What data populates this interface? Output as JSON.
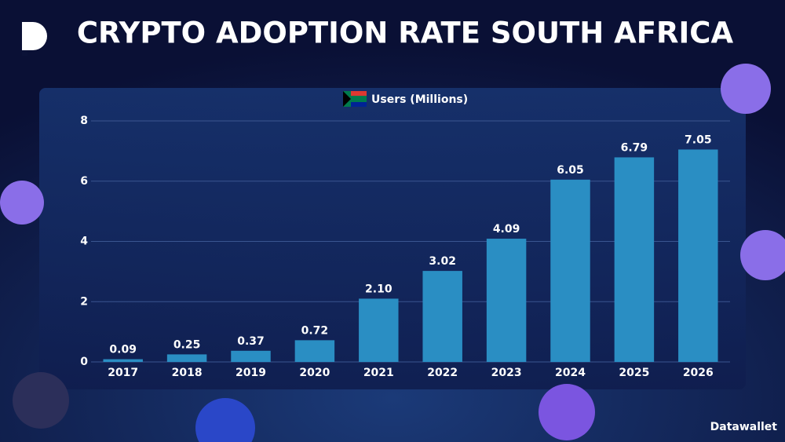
{
  "chart_data": {
    "type": "bar",
    "title": "CRYPTO ADOPTION RATE SOUTH AFRICA",
    "categories": [
      "2017",
      "2018",
      "2019",
      "2020",
      "2021",
      "2022",
      "2023",
      "2024",
      "2025",
      "2026"
    ],
    "series": [
      {
        "name": "Users (Millions)",
        "color": "#2a8ec3",
        "values": [
          0.09,
          0.25,
          0.37,
          0.72,
          2.1,
          3.02,
          4.09,
          6.05,
          6.79,
          7.05
        ],
        "value_labels": [
          "0.09",
          "0.25",
          "0.37",
          "0.72",
          "2.10",
          "3.02",
          "4.09",
          "6.05",
          "6.79",
          "7.05"
        ]
      }
    ],
    "ylim": [
      0,
      8
    ],
    "yticks": [
      0,
      2,
      4,
      6,
      8
    ],
    "grid": true
  },
  "brand": "Datawallet"
}
